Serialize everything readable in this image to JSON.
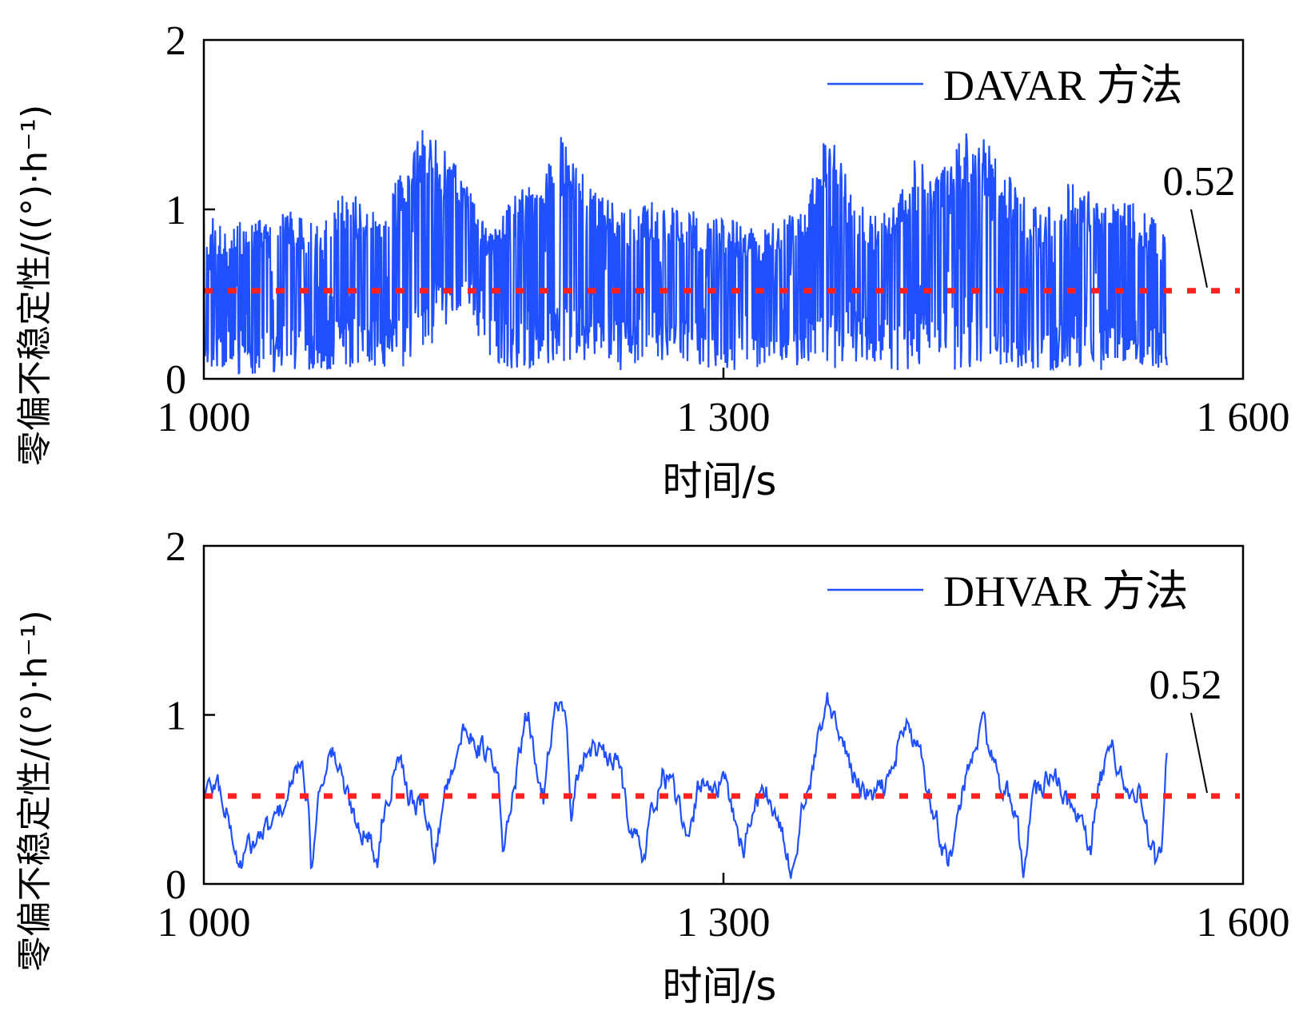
{
  "chart_data": [
    {
      "type": "line",
      "xlabel": "时间/s",
      "ylabel": "零偏不稳定性/((°)·h⁻¹)",
      "xlim": [
        1000,
        1600
      ],
      "ylim": [
        0,
        2
      ],
      "xticks": [
        1000,
        1300,
        1600
      ],
      "xtick_labels": [
        "1 000",
        "1 300",
        "1 600"
      ],
      "yticks": [
        0,
        1,
        2
      ],
      "ytick_labels": [
        "0",
        "1",
        "2"
      ],
      "legend_position": "top-right",
      "colors": {
        "series": "#1f4fff",
        "threshold": "#ff2020"
      },
      "series": [
        {
          "name": "DAVAR 方法",
          "x_range": [
            1000,
            1556
          ],
          "points": 1600,
          "band_lower": [
            [
              1000,
              0.03
            ],
            [
              1035,
              0.03
            ],
            [
              1070,
              0.05
            ],
            [
              1110,
              0.05
            ],
            [
              1125,
              0.1
            ],
            [
              1135,
              0.25
            ],
            [
              1150,
              0.45
            ],
            [
              1165,
              0.1
            ],
            [
              1180,
              0.05
            ],
            [
              1200,
              0.08
            ],
            [
              1215,
              0.12
            ],
            [
              1230,
              0.05
            ],
            [
              1245,
              0.05
            ],
            [
              1260,
              0.12
            ],
            [
              1280,
              0.08
            ],
            [
              1300,
              0.05
            ],
            [
              1320,
              0.05
            ],
            [
              1340,
              0.08
            ],
            [
              1360,
              0.05
            ],
            [
              1380,
              0.1
            ],
            [
              1400,
              0.05
            ],
            [
              1420,
              0.05
            ],
            [
              1440,
              0.05
            ],
            [
              1460,
              0.08
            ],
            [
              1480,
              0.05
            ],
            [
              1500,
              0.05
            ],
            [
              1520,
              0.05
            ],
            [
              1540,
              0.05
            ],
            [
              1556,
              0.05
            ]
          ],
          "band_upper": [
            [
              1000,
              0.95
            ],
            [
              1030,
              0.95
            ],
            [
              1050,
              1.0
            ],
            [
              1065,
              0.9
            ],
            [
              1080,
              1.1
            ],
            [
              1105,
              1.05
            ],
            [
              1125,
              1.5
            ],
            [
              1140,
              1.35
            ],
            [
              1150,
              1.2
            ],
            [
              1165,
              0.85
            ],
            [
              1180,
              1.1
            ],
            [
              1195,
              1.2
            ],
            [
              1205,
              1.45
            ],
            [
              1220,
              1.2
            ],
            [
              1240,
              1.0
            ],
            [
              1260,
              1.05
            ],
            [
              1280,
              1.0
            ],
            [
              1300,
              0.95
            ],
            [
              1320,
              0.9
            ],
            [
              1345,
              1.0
            ],
            [
              1360,
              1.5
            ],
            [
              1375,
              1.1
            ],
            [
              1390,
              0.95
            ],
            [
              1410,
              1.3
            ],
            [
              1425,
              1.25
            ],
            [
              1440,
              1.45
            ],
            [
              1455,
              1.4
            ],
            [
              1470,
              1.1
            ],
            [
              1485,
              1.0
            ],
            [
              1500,
              1.2
            ],
            [
              1520,
              1.05
            ],
            [
              1540,
              1.05
            ],
            [
              1556,
              0.85
            ]
          ]
        }
      ],
      "reference_line": {
        "y": 0.52,
        "label": "0.52",
        "style": "dotted"
      }
    },
    {
      "type": "line",
      "xlabel": "时间/s",
      "ylabel": "零偏不稳定性/((°)·h⁻¹)",
      "xlim": [
        1000,
        1600
      ],
      "ylim": [
        0,
        2
      ],
      "xticks": [
        1000,
        1300,
        1600
      ],
      "xtick_labels": [
        "1 000",
        "1 300",
        "1 600"
      ],
      "yticks": [
        0,
        1,
        2
      ],
      "ytick_labels": [
        "0",
        "1",
        "2"
      ],
      "legend_position": "top-right",
      "colors": {
        "series": "#1f4fff",
        "threshold": "#ff2020"
      },
      "series": [
        {
          "name": "DHVAR 方法",
          "x_range": [
            1000,
            1556
          ],
          "points": 900,
          "trend": [
            [
              1000,
              0.55
            ],
            [
              1008,
              0.6
            ],
            [
              1015,
              0.35
            ],
            [
              1020,
              0.1
            ],
            [
              1025,
              0.2
            ],
            [
              1030,
              0.25
            ],
            [
              1040,
              0.35
            ],
            [
              1050,
              0.55
            ],
            [
              1055,
              0.72
            ],
            [
              1060,
              0.5
            ],
            [
              1062,
              0.1
            ],
            [
              1065,
              0.45
            ],
            [
              1070,
              0.72
            ],
            [
              1075,
              0.78
            ],
            [
              1080,
              0.6
            ],
            [
              1085,
              0.45
            ],
            [
              1090,
              0.35
            ],
            [
              1095,
              0.3
            ],
            [
              1100,
              0.1
            ],
            [
              1103,
              0.4
            ],
            [
              1108,
              0.6
            ],
            [
              1112,
              0.85
            ],
            [
              1118,
              0.55
            ],
            [
              1125,
              0.45
            ],
            [
              1130,
              0.4
            ],
            [
              1133,
              0.1
            ],
            [
              1138,
              0.5
            ],
            [
              1145,
              0.78
            ],
            [
              1150,
              0.88
            ],
            [
              1155,
              0.9
            ],
            [
              1160,
              0.8
            ],
            [
              1165,
              0.75
            ],
            [
              1170,
              0.6
            ],
            [
              1173,
              0.15
            ],
            [
              1175,
              0.3
            ],
            [
              1178,
              0.55
            ],
            [
              1183,
              0.8
            ],
            [
              1187,
              1.0
            ],
            [
              1192,
              0.7
            ],
            [
              1196,
              0.5
            ],
            [
              1200,
              0.9
            ],
            [
              1205,
              1.1
            ],
            [
              1210,
              0.9
            ],
            [
              1212,
              0.3
            ],
            [
              1215,
              0.55
            ],
            [
              1220,
              0.78
            ],
            [
              1225,
              0.82
            ],
            [
              1230,
              0.75
            ],
            [
              1235,
              0.72
            ],
            [
              1240,
              0.7
            ],
            [
              1245,
              0.4
            ],
            [
              1250,
              0.3
            ],
            [
              1253,
              0.1
            ],
            [
              1258,
              0.4
            ],
            [
              1265,
              0.65
            ],
            [
              1270,
              0.6
            ],
            [
              1275,
              0.4
            ],
            [
              1280,
              0.2
            ],
            [
              1285,
              0.55
            ],
            [
              1290,
              0.65
            ],
            [
              1295,
              0.55
            ],
            [
              1300,
              0.6
            ],
            [
              1305,
              0.45
            ],
            [
              1312,
              0.2
            ],
            [
              1318,
              0.5
            ],
            [
              1325,
              0.55
            ],
            [
              1333,
              0.3
            ],
            [
              1340,
              0.05
            ],
            [
              1345,
              0.45
            ],
            [
              1350,
              0.55
            ],
            [
              1355,
              0.85
            ],
            [
              1360,
              1.05
            ],
            [
              1365,
              0.9
            ],
            [
              1370,
              0.8
            ],
            [
              1375,
              0.65
            ],
            [
              1380,
              0.55
            ],
            [
              1385,
              0.5
            ],
            [
              1390,
              0.55
            ],
            [
              1395,
              0.6
            ],
            [
              1400,
              0.8
            ],
            [
              1405,
              0.95
            ],
            [
              1410,
              0.85
            ],
            [
              1415,
              0.7
            ],
            [
              1420,
              0.5
            ],
            [
              1425,
              0.3
            ],
            [
              1430,
              0.1
            ],
            [
              1435,
              0.4
            ],
            [
              1440,
              0.6
            ],
            [
              1445,
              0.8
            ],
            [
              1450,
              0.95
            ],
            [
              1455,
              0.75
            ],
            [
              1460,
              0.6
            ],
            [
              1465,
              0.5
            ],
            [
              1470,
              0.3
            ],
            [
              1473,
              0.05
            ],
            [
              1477,
              0.45
            ],
            [
              1482,
              0.55
            ],
            [
              1488,
              0.65
            ],
            [
              1493,
              0.6
            ],
            [
              1498,
              0.5
            ],
            [
              1503,
              0.45
            ],
            [
              1508,
              0.3
            ],
            [
              1512,
              0.15
            ],
            [
              1515,
              0.5
            ],
            [
              1520,
              0.7
            ],
            [
              1525,
              0.8
            ],
            [
              1530,
              0.65
            ],
            [
              1535,
              0.5
            ],
            [
              1540,
              0.55
            ],
            [
              1545,
              0.3
            ],
            [
              1550,
              0.1
            ],
            [
              1553,
              0.2
            ],
            [
              1556,
              0.75
            ]
          ]
        }
      ],
      "reference_line": {
        "y": 0.52,
        "label": "0.52",
        "style": "dotted"
      }
    }
  ]
}
